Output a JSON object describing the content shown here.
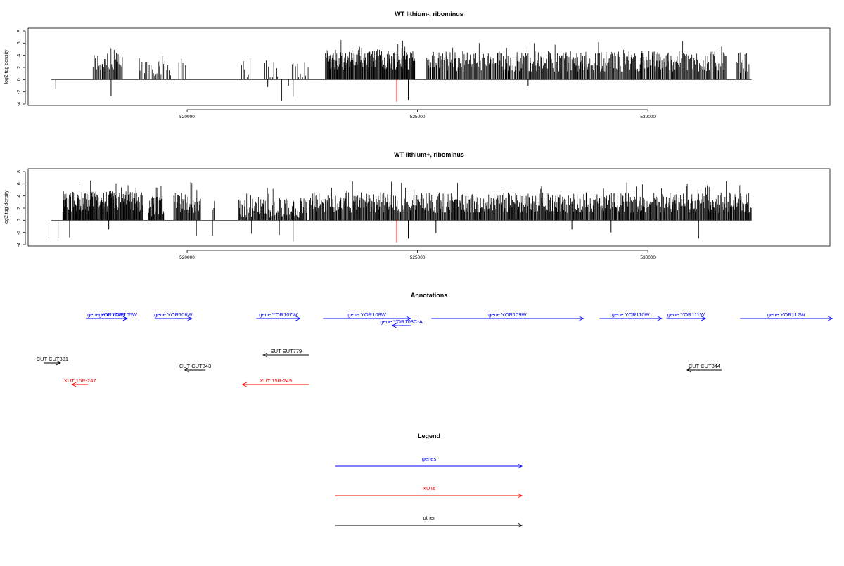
{
  "chart_data": [
    {
      "type": "bar",
      "title": "WT lithium-, ribominus",
      "xlabel": "",
      "ylabel": "log2 tag density",
      "xlim": [
        516550,
        533950
      ],
      "ylim": [
        -4,
        8
      ],
      "x_ticks": [
        520000,
        525000,
        530000
      ],
      "x_tick_labels": [
        "520000",
        "525000",
        "530000"
      ],
      "y_ticks": [
        -4,
        -2,
        0,
        2,
        4,
        6,
        8
      ],
      "y_tick_labels": [
        "-4",
        "-2",
        "0",
        "2",
        "4",
        "6",
        "8"
      ],
      "clusters": [
        {
          "start": 517950,
          "end": 518600,
          "avg": 2.7,
          "n": 40
        },
        {
          "start": 518950,
          "end": 519650,
          "avg": 2.3,
          "n": 25
        },
        {
          "start": 519800,
          "end": 519990,
          "avg": 3.0,
          "n": 4
        },
        {
          "start": 521150,
          "end": 521400,
          "avg": 2.0,
          "n": 6
        },
        {
          "start": 521650,
          "end": 522000,
          "avg": 1.8,
          "n": 8
        },
        {
          "start": 522250,
          "end": 522650,
          "avg": 1.5,
          "n": 10
        },
        {
          "start": 523000,
          "end": 524950,
          "avg": 3.3,
          "n": 180
        },
        {
          "start": 525200,
          "end": 531700,
          "avg": 3.0,
          "n": 430
        },
        {
          "start": 531900,
          "end": 532200,
          "avg": 2.8,
          "n": 14
        }
      ],
      "negatives": [
        {
          "x": 517150,
          "y": -1.5
        },
        {
          "x": 518350,
          "y": -2.7
        },
        {
          "x": 521750,
          "y": -1.2
        },
        {
          "x": 522050,
          "y": -3.5
        },
        {
          "x": 522200,
          "y": -1.0
        },
        {
          "x": 522300,
          "y": -2.8
        },
        {
          "x": 524800,
          "y": -3.3
        },
        {
          "x": 527400,
          "y": -1.0
        }
      ],
      "highlight": {
        "x": 524550,
        "y": -3.6,
        "color": "#ff0000"
      }
    },
    {
      "type": "bar",
      "title": "WT lithium+, ribominus",
      "xlabel": "",
      "ylabel": "log2 tag density",
      "xlim": [
        516550,
        533950
      ],
      "ylim": [
        -4,
        8
      ],
      "x_ticks": [
        520000,
        525000,
        530000
      ],
      "x_tick_labels": [
        "520000",
        "525000",
        "530000"
      ],
      "y_ticks": [
        -4,
        -2,
        0,
        2,
        4,
        6,
        8
      ],
      "y_tick_labels": [
        "-4",
        "-2",
        "0",
        "2",
        "4",
        "6",
        "8"
      ],
      "clusters": [
        {
          "start": 517300,
          "end": 519050,
          "avg": 3.1,
          "n": 170
        },
        {
          "start": 519150,
          "end": 519500,
          "avg": 2.3,
          "n": 30
        },
        {
          "start": 519700,
          "end": 520300,
          "avg": 2.9,
          "n": 45
        },
        {
          "start": 520550,
          "end": 520600,
          "avg": 1.5,
          "n": 3
        },
        {
          "start": 521100,
          "end": 522600,
          "avg": 2.0,
          "n": 110
        },
        {
          "start": 522650,
          "end": 532250,
          "avg": 2.9,
          "n": 760
        }
      ],
      "negatives": [
        {
          "x": 517000,
          "y": -3.2
        },
        {
          "x": 517200,
          "y": -3.0
        },
        {
          "x": 517450,
          "y": -2.8
        },
        {
          "x": 518300,
          "y": -1.5
        },
        {
          "x": 520200,
          "y": -2.6
        },
        {
          "x": 520550,
          "y": -2.5
        },
        {
          "x": 521400,
          "y": -2.2
        },
        {
          "x": 522000,
          "y": -2.4
        },
        {
          "x": 522300,
          "y": -3.5
        },
        {
          "x": 524800,
          "y": -3.0
        },
        {
          "x": 525400,
          "y": -2.1
        },
        {
          "x": 528350,
          "y": -1.5
        },
        {
          "x": 529200,
          "y": -2.0
        },
        {
          "x": 531100,
          "y": -3.0
        }
      ],
      "highlight": {
        "x": 524550,
        "y": -3.6,
        "color": "#ff0000"
      }
    }
  ],
  "annotations": {
    "title": "Annotations",
    "features": [
      {
        "label": "gene YOR104W",
        "start": 517800,
        "end": 518700,
        "strand": "+",
        "row": 0,
        "color": "#0000ff"
      },
      {
        "label": "gene YOR105W",
        "start": 518300,
        "end": 518700,
        "strand": "+",
        "row": 0,
        "color": "#0000ff"
      },
      {
        "label": "gene YOR106W",
        "start": 519300,
        "end": 520100,
        "strand": "+",
        "row": 0,
        "color": "#0000ff"
      },
      {
        "label": "gene YOR107W",
        "start": 521500,
        "end": 522450,
        "strand": "+",
        "row": 0,
        "color": "#0000ff"
      },
      {
        "label": "gene YOR108W",
        "start": 522950,
        "end": 524850,
        "strand": "+",
        "row": 0,
        "color": "#0000ff"
      },
      {
        "label": "gene YOR108C-A",
        "start": 524450,
        "end": 524850,
        "strand": "-",
        "row": 1,
        "color": "#0000ff"
      },
      {
        "label": "gene YOR109W",
        "start": 525300,
        "end": 528600,
        "strand": "+",
        "row": 0,
        "color": "#0000ff"
      },
      {
        "label": "gene YOR110W",
        "start": 528950,
        "end": 530300,
        "strand": "+",
        "row": 0,
        "color": "#0000ff"
      },
      {
        "label": "gene YOR111W",
        "start": 530400,
        "end": 531250,
        "strand": "+",
        "row": 0,
        "color": "#0000ff"
      },
      {
        "label": "gene YOR112W",
        "start": 532000,
        "end": 534000,
        "strand": "+",
        "row": 0,
        "color": "#0000ff"
      },
      {
        "label": "SUT SUT779",
        "start": 521650,
        "end": 522650,
        "strand": "-",
        "row": 2,
        "color": "#000000"
      },
      {
        "label": "CUT CUT381",
        "start": 516900,
        "end": 517250,
        "strand": "+",
        "row": 3,
        "color": "#000000"
      },
      {
        "label": "CUT CUT843",
        "start": 519950,
        "end": 520400,
        "strand": "-",
        "row": 4,
        "color": "#000000"
      },
      {
        "label": "CUT CUT844",
        "start": 530850,
        "end": 531600,
        "strand": "-",
        "row": 4,
        "color": "#000000"
      },
      {
        "label": "XUT 15R-247",
        "start": 517500,
        "end": 517850,
        "strand": "-",
        "row": 5,
        "color": "#ff0000"
      },
      {
        "label": "XUT 15R-249",
        "start": 521200,
        "end": 522650,
        "strand": "-",
        "row": 5,
        "color": "#ff0000"
      }
    ]
  },
  "legend": {
    "title": "Legend",
    "items": [
      {
        "label": "genes",
        "color": "#0000ff"
      },
      {
        "label": "XUTs",
        "color": "#ff0000"
      },
      {
        "label": "other",
        "color": "#000000"
      }
    ]
  }
}
